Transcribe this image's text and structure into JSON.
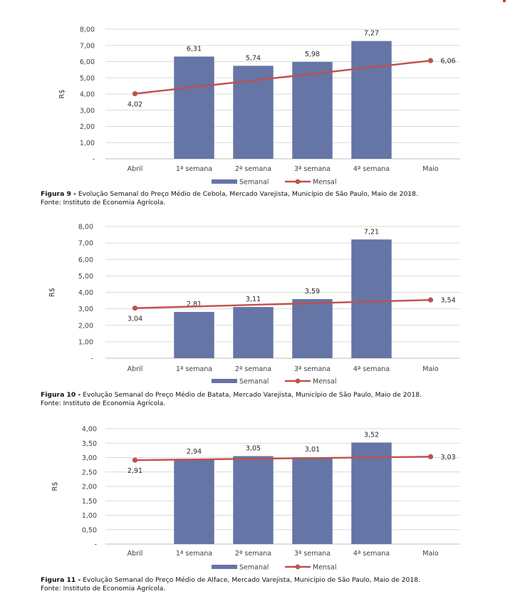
{
  "colors": {
    "bar": "#6475a6",
    "line": "#c0504d",
    "grid": "#d9d9d9",
    "axis_text": "#3f3f3f"
  },
  "legend": {
    "bar_label": "Semanal",
    "line_label": "Mensal"
  },
  "chart_data": [
    {
      "type": "bar",
      "ylabel": "R$",
      "ylim": [
        0,
        8
      ],
      "yticks": [
        "-",
        "1,00",
        "2,00",
        "3,00",
        "4,00",
        "5,00",
        "6,00",
        "7,00",
        "8,00"
      ],
      "categories": [
        "Abril",
        "1ª semana",
        "2ª semana",
        "3ª semana",
        "4ª semana",
        "Maio"
      ],
      "series": [
        {
          "name": "Semanal",
          "type": "bar",
          "values": [
            null,
            6.31,
            5.74,
            5.98,
            7.27,
            null
          ],
          "labels": [
            "",
            "6,31",
            "5,74",
            "5,98",
            "7,27",
            ""
          ]
        },
        {
          "name": "Mensal",
          "type": "line",
          "values": [
            4.02,
            null,
            null,
            null,
            null,
            6.06
          ],
          "labels": [
            "4,02",
            "",
            "",
            "",
            "",
            "6,06"
          ]
        }
      ],
      "grid": true,
      "legend_position": "bottom"
    },
    {
      "type": "bar",
      "ylabel": "R$",
      "ylim": [
        0,
        8
      ],
      "yticks": [
        "-",
        "1,00",
        "2,00",
        "3,00",
        "4,00",
        "5,00",
        "6,00",
        "7,00",
        "8,00"
      ],
      "categories": [
        "Abril",
        "1ª semana",
        "2ª semana",
        "3ª semana",
        "4ª semana",
        "Maio"
      ],
      "series": [
        {
          "name": "Semanal",
          "type": "bar",
          "values": [
            null,
            2.81,
            3.11,
            3.59,
            7.21,
            null
          ],
          "labels": [
            "",
            "2,81",
            "3,11",
            "3,59",
            "7,21",
            ""
          ]
        },
        {
          "name": "Mensal",
          "type": "line",
          "values": [
            3.04,
            null,
            null,
            null,
            null,
            3.54
          ],
          "labels": [
            "3,04",
            "",
            "",
            "",
            "",
            "3,54"
          ]
        }
      ],
      "grid": true,
      "legend_position": "bottom"
    },
    {
      "type": "bar",
      "ylabel": "R$",
      "ylim": [
        0,
        4
      ],
      "yticks": [
        "-",
        "0,50",
        "1,00",
        "1,50",
        "2,00",
        "2,50",
        "3,00",
        "3,50",
        "4,00"
      ],
      "categories": [
        "Abril",
        "1ª semana",
        "2ª semana",
        "3ª semana",
        "4ª semana",
        "Maio"
      ],
      "series": [
        {
          "name": "Semanal",
          "type": "bar",
          "values": [
            null,
            2.94,
            3.05,
            3.01,
            3.52,
            null
          ],
          "labels": [
            "",
            "2,94",
            "3,05",
            "3,01",
            "3,52",
            ""
          ]
        },
        {
          "name": "Mensal",
          "type": "line",
          "values": [
            2.91,
            null,
            null,
            null,
            null,
            3.03
          ],
          "labels": [
            "2,91",
            "",
            "",
            "",
            "",
            "3,03"
          ]
        }
      ],
      "grid": true,
      "legend_position": "bottom"
    }
  ],
  "captions": [
    {
      "figure": "Figura 9 -",
      "text": "Evolução Semanal do Preço Médio de Cebola, Mercado Varejista, Município de São Paulo, Maio de 2018.",
      "source": "Fonte: Instituto de Economia Agrícola."
    },
    {
      "figure": "Figura 10 -",
      "text": "Evolução Semanal do Preço Médio de Batata, Mercado Varejista, Município de São Paulo, Maio de 2018.",
      "source": "Fonte: Instituto de Economia Agrícola."
    },
    {
      "figure": "Figura 11 -",
      "text": "Evolução Semanal do Preço Médio de Alface, Mercado Varejista, Município de São Paulo, Maio de 2018.",
      "source": "Fonte: Instituto de Economia Agrícola."
    }
  ]
}
